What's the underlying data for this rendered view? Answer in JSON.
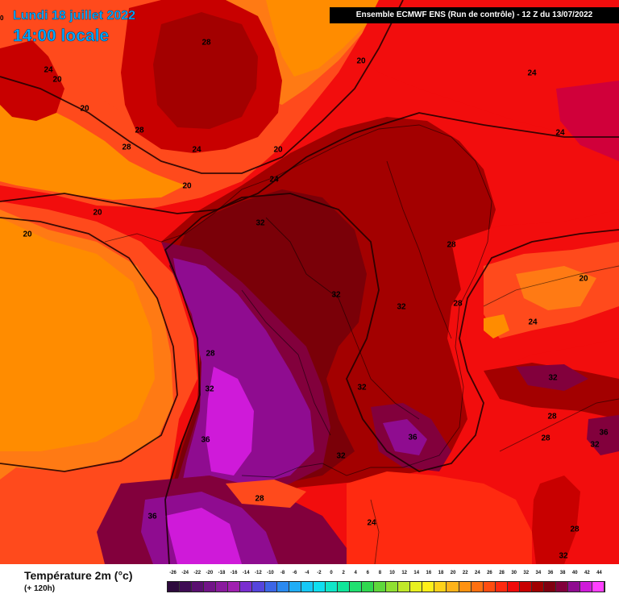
{
  "header": {
    "date_label": "Lundi 18 juillet 2022",
    "time_label": "14:00 locale",
    "edge_label": "0",
    "model_info": "Ensemble ECMWF ENS  (Run de contrôle)  -  12 Z du 13/07/2022"
  },
  "isotherm_labels": [
    "28",
    "24",
    "20",
    "20",
    "20",
    "24",
    "28",
    "28",
    "24",
    "20",
    "24",
    "20",
    "20",
    "20",
    "24",
    "32",
    "28",
    "32",
    "32",
    "28",
    "20",
    "24",
    "28",
    "32",
    "32",
    "32",
    "36",
    "36",
    "28",
    "28",
    "36",
    "32",
    "28",
    "24",
    "28",
    "32",
    "36",
    "32"
  ],
  "colors": {
    "t20": "#ff8c00",
    "t24": "#ff4a1c",
    "t28": "#f20d0d",
    "t32": "#a30000",
    "t34": "#7a0008",
    "t36": "#82003c",
    "t38": "#8f0c90",
    "t40": "#cf1ad9"
  },
  "legend": {
    "title": "Température 2m (°c)",
    "subtitle": "(+ 120h)",
    "ticks": [
      "-26",
      "-24",
      "-22",
      "-20",
      "-18",
      "-16",
      "-14",
      "-12",
      "-10",
      "-8",
      "-6",
      "-4",
      "-2",
      "0",
      "2",
      "4",
      "6",
      "8",
      "10",
      "12",
      "14",
      "16",
      "18",
      "20",
      "22",
      "24",
      "26",
      "28",
      "30",
      "32",
      "34",
      "36",
      "38",
      "40",
      "42",
      "44"
    ],
    "colors": [
      "#2d0a3d",
      "#3f0c55",
      "#5a1070",
      "#721488",
      "#8a1a9e",
      "#a020b0",
      "#7a2ed0",
      "#5545dc",
      "#3c66e6",
      "#2b8af0",
      "#21adf6",
      "#17c8f8",
      "#10def0",
      "#10e6c8",
      "#10e69a",
      "#20e070",
      "#30d850",
      "#5fd83c",
      "#90e032",
      "#c0e82a",
      "#e8f020",
      "#fff01a",
      "#ffd21a",
      "#ffb31a",
      "#ff9210",
      "#ff7010",
      "#ff4d10",
      "#ff2a10",
      "#f00a0a",
      "#c80000",
      "#a00000",
      "#800010",
      "#82003c",
      "#8f0c90",
      "#cf1ad9",
      "#ff40ff"
    ]
  }
}
